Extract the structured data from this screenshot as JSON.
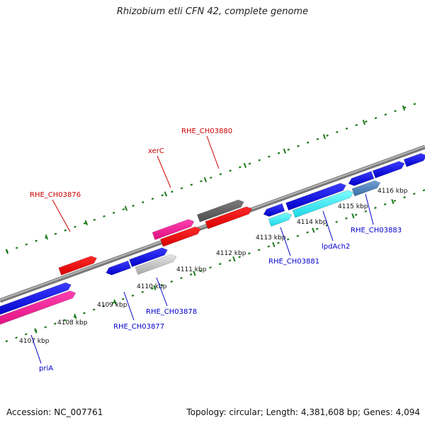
{
  "title": "Rhizobium etli CFN 42, complete genome",
  "footer": {
    "accession": "Accession: NC_007761",
    "info": "Topology: circular; Length: 4,381,608 bp; Genes: 4,094"
  },
  "colors": {
    "backbone": "#8a8a8a",
    "tick": "#1a7a1a",
    "label_forward": "#cc0000",
    "label_reverse": "#0000cc"
  },
  "kbp_ticks": [
    "4107 kbp",
    "4108 kbp",
    "4109 kbp",
    "4110 kbp",
    "4111 kbp",
    "4112 kbp",
    "4113 kbp",
    "4114 kbp",
    "4115 kbp",
    "4116 kbp"
  ],
  "gene_labels": [
    {
      "name": "RHE_CH03876",
      "strand": "forward"
    },
    {
      "name": "xerC",
      "strand": "forward"
    },
    {
      "name": "RHE_CH03880",
      "strand": "forward"
    },
    {
      "name": "priA",
      "strand": "reverse"
    },
    {
      "name": "RHE_CH03877",
      "strand": "reverse"
    },
    {
      "name": "RHE_CH03878",
      "strand": "reverse"
    },
    {
      "name": "RHE_CH03881",
      "strand": "reverse"
    },
    {
      "name": "lpdAch2",
      "strand": "reverse"
    },
    {
      "name": "RHE_CH03883",
      "strand": "reverse"
    }
  ]
}
